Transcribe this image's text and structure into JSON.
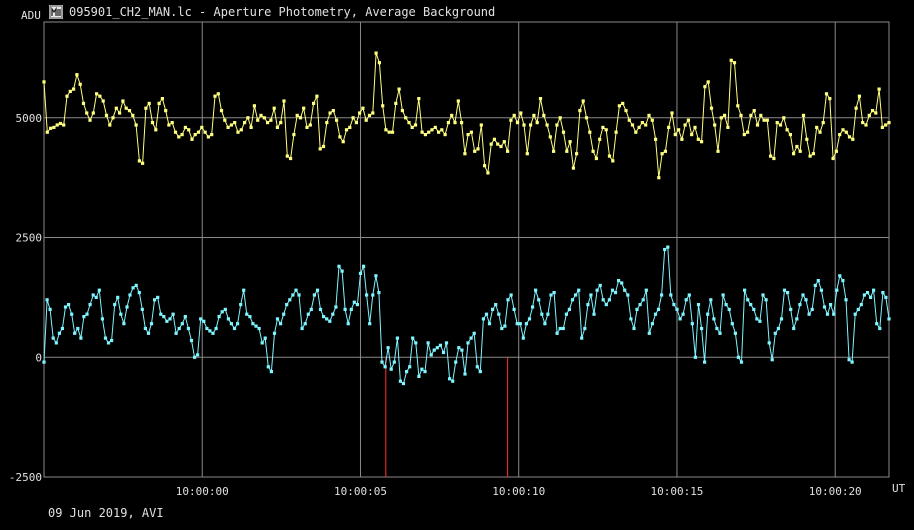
{
  "window": {
    "title": "095901_CH2_MAN.lc - Aperture Photometry, Average Background",
    "icon": "lightcurve-app-icon"
  },
  "footer": {
    "date_text": "09 Jun 2019, AVI"
  },
  "colors": {
    "background": "#000000",
    "grid": "#8a8a8a",
    "target": "#ffff80",
    "background_series": "#7ff5ff",
    "marker": "#ff3030"
  },
  "chart_data": {
    "type": "line",
    "title": "",
    "xlabel": "UT",
    "ylabel": "ADU",
    "ylim": [
      -2500,
      7000
    ],
    "x_range_seconds": [
      -5,
      21.7
    ],
    "x_tick_labels": [
      "10:00:00",
      "10:00:05",
      "10:00:10",
      "10:00:15",
      "10:00:20"
    ],
    "x_tick_values_seconds": [
      0,
      5,
      10,
      15,
      20
    ],
    "y_ticks": [
      -2500,
      0,
      2500,
      5000
    ],
    "grid": true,
    "red_markers_seconds": [
      5.8,
      9.65
    ],
    "series": [
      {
        "name": "",
        "color": "#ffff80",
        "mean": 4900,
        "values": [
          5750,
          4700,
          4780,
          4800,
          4850,
          4880,
          4850,
          5450,
          5550,
          5600,
          5900,
          5700,
          5300,
          5100,
          4950,
          5100,
          5500,
          5450,
          5350,
          5050,
          4850,
          5000,
          5200,
          5100,
          5350,
          5200,
          5150,
          5050,
          4850,
          4100,
          4050,
          5200,
          5300,
          4900,
          4750,
          5300,
          5400,
          5150,
          4850,
          4900,
          4700,
          4600,
          4650,
          4800,
          4750,
          4550,
          4650,
          4700,
          4800,
          4700,
          4600,
          4650,
          5450,
          5500,
          5150,
          4950,
          4800,
          4850,
          4900,
          4700,
          4750,
          4900,
          5000,
          4800,
          5250,
          4950,
          5050,
          5000,
          4900,
          4950,
          5200,
          4800,
          4900,
          5350,
          4200,
          4150,
          4650,
          5050,
          5000,
          5200,
          4800,
          4850,
          5300,
          5450,
          4350,
          4400,
          4900,
          5100,
          5150,
          4950,
          4600,
          4500,
          4750,
          4800,
          5000,
          4900,
          5100,
          5200,
          4950,
          5050,
          5100,
          6350,
          6150,
          5250,
          4750,
          4700,
          4700,
          5300,
          5600,
          5150,
          5000,
          4900,
          4800,
          4850,
          5400,
          4700,
          4650,
          4700,
          4750,
          4800,
          4700,
          4750,
          4650,
          4900,
          5050,
          4900,
          5350,
          4900,
          4250,
          4650,
          4700,
          4300,
          4350,
          4850,
          4000,
          3850,
          4450,
          4550,
          4450,
          4400,
          4500,
          4300,
          4950,
          5050,
          4900,
          5100,
          4850,
          4250,
          4850,
          5050,
          4900,
          5400,
          5050,
          4850,
          4600,
          4300,
          4850,
          5000,
          4700,
          4300,
          4500,
          3950,
          4250,
          5150,
          5350,
          5000,
          4700,
          4300,
          4150,
          4550,
          4800,
          4750,
          4200,
          4100,
          4700,
          5250,
          5300,
          5150,
          4950,
          4850,
          4700,
          4800,
          4900,
          4850,
          5050,
          4950,
          4550,
          3750,
          4250,
          4300,
          4800,
          5100,
          4650,
          4750,
          4550,
          4850,
          4950,
          4650,
          4800,
          4550,
          4500,
          5650,
          5750,
          5200,
          4850,
          4300,
          5000,
          5050,
          4800,
          6200,
          6150,
          5250,
          5050,
          4650,
          4700,
          5050,
          5150,
          4850,
          5050,
          4950,
          4950,
          4200,
          4150,
          4900,
          4850,
          5000,
          4750,
          4650,
          4250,
          4400,
          4300,
          5050,
          4550,
          4200,
          4250,
          4800,
          4700,
          4900,
          5500,
          5400,
          4150,
          4300,
          4650,
          4750,
          4700,
          4600,
          4550,
          5200,
          5450,
          4900,
          4850,
          5050,
          5150,
          5100,
          5600,
          4800,
          4850,
          4900
        ]
      },
      {
        "name": "",
        "color": "#7ff5ff",
        "mean": 700,
        "values": [
          -100,
          1200,
          1000,
          400,
          300,
          500,
          600,
          1050,
          1100,
          900,
          500,
          600,
          400,
          850,
          900,
          1100,
          1300,
          1250,
          1400,
          800,
          400,
          300,
          350,
          1100,
          1250,
          900,
          700,
          1050,
          1300,
          1450,
          1500,
          1350,
          1000,
          600,
          500,
          700,
          1200,
          1250,
          900,
          850,
          750,
          800,
          900,
          500,
          600,
          700,
          850,
          600,
          350,
          0,
          50,
          800,
          750,
          600,
          550,
          500,
          600,
          850,
          950,
          1000,
          800,
          700,
          600,
          700,
          1100,
          1400,
          900,
          850,
          700,
          650,
          600,
          300,
          400,
          -200,
          -300,
          500,
          800,
          700,
          900,
          1100,
          1200,
          1300,
          1400,
          1300,
          600,
          700,
          900,
          1000,
          1300,
          1400,
          1000,
          850,
          800,
          750,
          900,
          1050,
          1900,
          1800,
          1000,
          700,
          1000,
          1150,
          1100,
          1750,
          1900,
          1300,
          700,
          1300,
          1700,
          1350,
          -100,
          -200,
          200,
          -250,
          -100,
          400,
          -500,
          -550,
          -300,
          -200,
          400,
          300,
          -400,
          -250,
          -300,
          300,
          50,
          150,
          200,
          250,
          100,
          300,
          -450,
          -500,
          -100,
          200,
          150,
          -350,
          300,
          400,
          500,
          -200,
          -300,
          800,
          900,
          700,
          1000,
          1100,
          900,
          600,
          650,
          1200,
          1300,
          1000,
          700,
          700,
          400,
          700,
          800,
          1050,
          1400,
          1200,
          900,
          700,
          900,
          1300,
          1350,
          500,
          600,
          600,
          900,
          1000,
          1200,
          1300,
          1400,
          400,
          600,
          1100,
          1300,
          900,
          1400,
          1500,
          1200,
          1100,
          1200,
          1400,
          1350,
          1600,
          1550,
          1400,
          1300,
          800,
          600,
          1000,
          1100,
          1200,
          1400,
          500,
          700,
          900,
          1000,
          1300,
          2250,
          2300,
          1300,
          1100,
          1000,
          800,
          900,
          1200,
          1300,
          700,
          0,
          1100,
          600,
          -100,
          900,
          1200,
          800,
          600,
          500,
          1300,
          1100,
          1000,
          700,
          500,
          0,
          -100,
          1400,
          1200,
          1100,
          1000,
          800,
          750,
          1300,
          1200,
          300,
          -50,
          500,
          600,
          800,
          1400,
          1350,
          1000,
          600,
          800,
          1100,
          1300,
          1200,
          900,
          1000,
          1500,
          1600,
          1400,
          1050,
          900,
          1100,
          900,
          1400,
          1700,
          1600,
          1200,
          -50,
          -100,
          900,
          1000,
          1100,
          1300,
          1350,
          1250,
          1400,
          700,
          600,
          1350,
          1250,
          800
        ]
      }
    ]
  }
}
